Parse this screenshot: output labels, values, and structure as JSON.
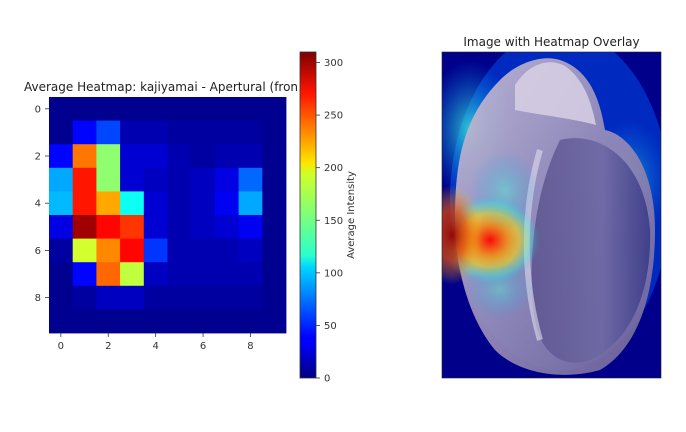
{
  "chart_data": [
    {
      "type": "heatmap",
      "title": "Average Heatmap: kajiyamai - Apertural (front)",
      "x_ticks": [
        0,
        2,
        4,
        6,
        8
      ],
      "y_ticks": [
        0,
        2,
        4,
        6,
        8
      ],
      "xlim": [
        -0.5,
        9.5
      ],
      "ylim": [
        9.5,
        -0.5
      ],
      "grid": false,
      "colormap": "jet",
      "colorbar": {
        "label": "Average Intensity",
        "range": [
          0,
          310
        ],
        "ticks": [
          0,
          50,
          100,
          150,
          200,
          250,
          300
        ]
      },
      "values": [
        [
          5,
          5,
          5,
          5,
          5,
          5,
          5,
          5,
          5,
          5
        ],
        [
          5,
          40,
          60,
          15,
          15,
          10,
          10,
          10,
          10,
          5
        ],
        [
          40,
          235,
          160,
          25,
          25,
          15,
          10,
          15,
          15,
          5
        ],
        [
          90,
          265,
          160,
          25,
          20,
          15,
          20,
          30,
          70,
          5
        ],
        [
          95,
          265,
          220,
          120,
          25,
          15,
          20,
          35,
          90,
          5
        ],
        [
          30,
          300,
          270,
          255,
          25,
          15,
          20,
          25,
          35,
          5
        ],
        [
          10,
          180,
          230,
          270,
          55,
          15,
          15,
          15,
          20,
          5
        ],
        [
          5,
          40,
          240,
          175,
          20,
          15,
          15,
          15,
          15,
          5
        ],
        [
          5,
          10,
          20,
          20,
          10,
          10,
          10,
          10,
          10,
          5
        ],
        [
          5,
          5,
          5,
          5,
          5,
          5,
          5,
          5,
          5,
          5
        ]
      ]
    },
    {
      "type": "image",
      "title": "Image with Heatmap Overlay",
      "content": "shell photograph (apertural view) overlaid with the heatmap in jet colormap"
    }
  ]
}
